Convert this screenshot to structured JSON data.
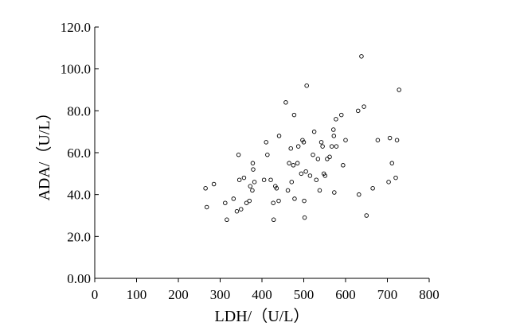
{
  "chart_data": {
    "type": "scatter",
    "title": "",
    "xlabel": "LDH/（U/L）",
    "ylabel": "ADA/（U/L）",
    "xlim": [
      0,
      800
    ],
    "ylim": [
      0,
      120
    ],
    "x_ticks": [
      "0",
      "100",
      "200",
      "300",
      "400",
      "500",
      "600",
      "700",
      "800"
    ],
    "y_ticks": [
      "0.00",
      "20.0",
      "40.0",
      "60.0",
      "80.0",
      "100.0",
      "120.0"
    ],
    "grid": false,
    "legend": "none",
    "marker": "open-circle",
    "series": [
      {
        "points": [
          [
            265,
            43
          ],
          [
            268,
            34
          ],
          [
            285,
            45
          ],
          [
            312,
            36
          ],
          [
            316,
            28
          ],
          [
            332,
            38
          ],
          [
            340,
            32
          ],
          [
            344,
            59
          ],
          [
            346,
            47
          ],
          [
            350,
            33
          ],
          [
            357,
            48
          ],
          [
            363,
            36
          ],
          [
            370,
            37
          ],
          [
            372,
            44
          ],
          [
            377,
            42
          ],
          [
            378,
            55
          ],
          [
            379,
            52
          ],
          [
            382,
            46
          ],
          [
            405,
            47
          ],
          [
            410,
            65
          ],
          [
            413,
            59
          ],
          [
            421,
            47
          ],
          [
            427,
            36
          ],
          [
            428,
            28
          ],
          [
            432,
            44
          ],
          [
            435,
            43
          ],
          [
            440,
            37
          ],
          [
            441,
            68
          ],
          [
            457,
            84
          ],
          [
            462,
            42
          ],
          [
            465,
            55
          ],
          [
            469,
            62
          ],
          [
            471,
            46
          ],
          [
            475,
            54
          ],
          [
            477,
            78
          ],
          [
            478,
            38
          ],
          [
            485,
            55
          ],
          [
            487,
            63
          ],
          [
            494,
            50
          ],
          [
            497,
            66
          ],
          [
            500,
            65
          ],
          [
            501,
            37
          ],
          [
            502,
            29
          ],
          [
            505,
            51
          ],
          [
            507,
            92
          ],
          [
            515,
            49
          ],
          [
            522,
            59
          ],
          [
            525,
            70
          ],
          [
            530,
            47
          ],
          [
            534,
            57
          ],
          [
            538,
            42
          ],
          [
            542,
            65
          ],
          [
            545,
            63
          ],
          [
            548,
            50
          ],
          [
            551,
            49
          ],
          [
            556,
            57
          ],
          [
            562,
            58
          ],
          [
            567,
            63
          ],
          [
            571,
            71
          ],
          [
            572,
            68
          ],
          [
            573,
            41
          ],
          [
            577,
            76
          ],
          [
            578,
            63
          ],
          [
            590,
            78
          ],
          [
            594,
            54
          ],
          [
            600,
            66
          ],
          [
            630,
            80
          ],
          [
            632,
            40
          ],
          [
            638,
            106
          ],
          [
            644,
            82
          ],
          [
            650,
            30
          ],
          [
            665,
            43
          ],
          [
            677,
            66
          ],
          [
            703,
            46
          ],
          [
            706,
            67
          ],
          [
            711,
            55
          ],
          [
            720,
            48
          ],
          [
            723,
            66
          ],
          [
            728,
            90
          ]
        ]
      }
    ]
  }
}
